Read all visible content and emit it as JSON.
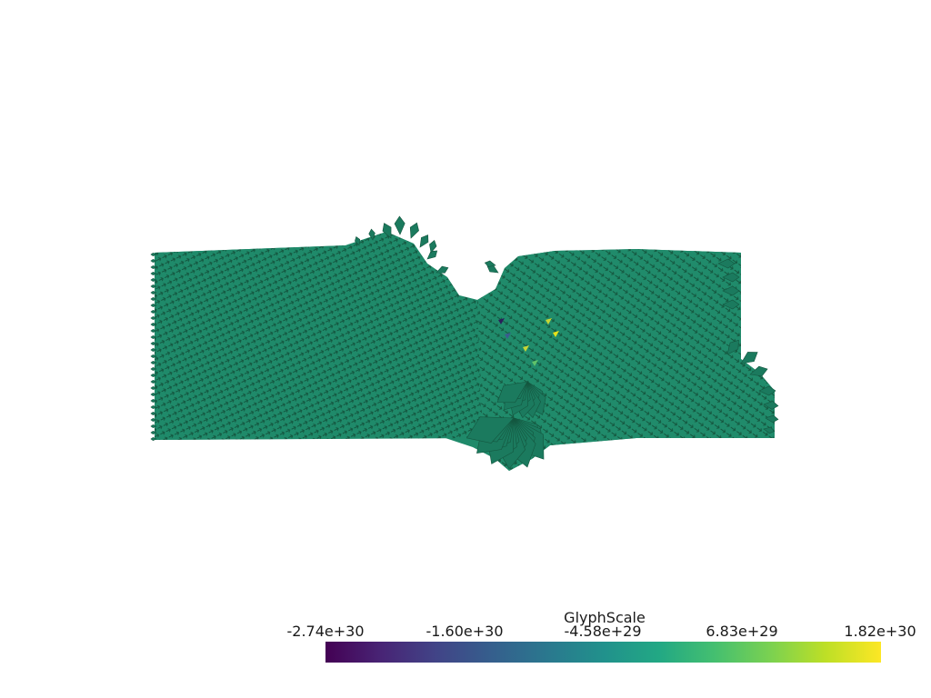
{
  "scene": {
    "shape_fill": "#1f8a6a",
    "shape_stroke": "#14563f",
    "glyph_color": "#1b7a5e",
    "background": "#ffffff"
  },
  "colorbar": {
    "title": "GlyphScale",
    "min": -2.74e+30,
    "max": 1.82e+30,
    "tick_labels": [
      "-2.74e+30",
      "-1.60e+30",
      "-4.58e+29",
      "6.83e+29",
      "1.82e+30"
    ],
    "colormap": "viridis",
    "stops": [
      "#440154",
      "#482475",
      "#414487",
      "#355f8d",
      "#2a788e",
      "#21918c",
      "#22a884",
      "#44bf70",
      "#7ad151",
      "#bddf26",
      "#fde725"
    ]
  },
  "highlights": [
    {
      "color": "#2b1f5a"
    },
    {
      "color": "#3b5b8f"
    },
    {
      "color": "#c8d635"
    },
    {
      "color": "#e6e21a"
    },
    {
      "color": "#5fc26a"
    }
  ]
}
